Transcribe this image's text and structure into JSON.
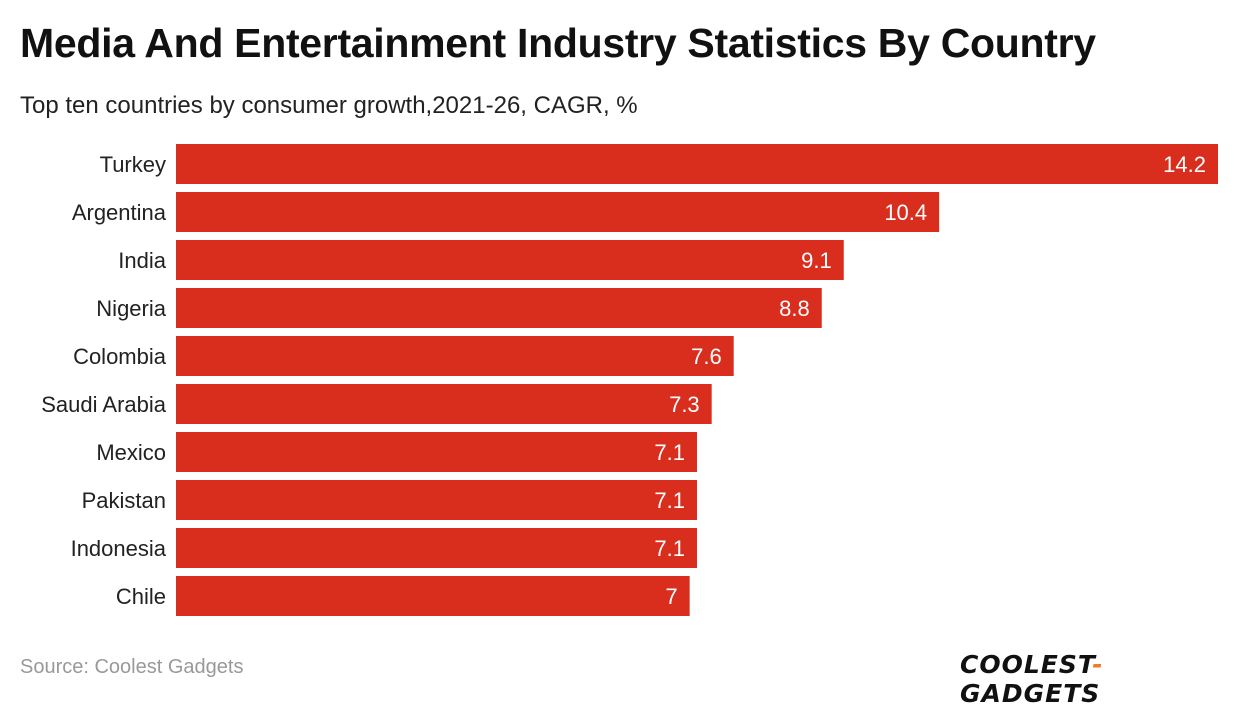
{
  "chart_data": {
    "type": "bar",
    "orientation": "horizontal",
    "title": "Media And Entertainment Industry Statistics By Country",
    "subtitle": "Top ten countries by consumer growth,2021-26, CAGR, %",
    "categories": [
      "Turkey",
      "Argentina",
      "India",
      "Nigeria",
      "Colombia",
      "Saudi Arabia",
      "Mexico",
      "Pakistan",
      "Indonesia",
      "Chile"
    ],
    "values": [
      14.2,
      10.4,
      9.1,
      8.8,
      7.6,
      7.3,
      7.1,
      7.1,
      7.1,
      7
    ],
    "xlim": [
      0,
      14.2
    ],
    "grid": false,
    "bar_color": "#d92d1e",
    "data_labels": "inside-end"
  },
  "footer": {
    "source": "Source: Coolest Gadgets",
    "logo_left": "COOLEST",
    "logo_dash": "-",
    "logo_right": "GADGETS"
  }
}
